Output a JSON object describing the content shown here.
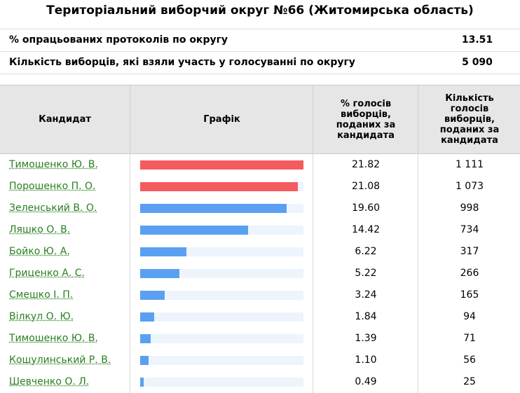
{
  "title": "Територіальний виборчий округ №66 (Житомирська область)",
  "summary": [
    {
      "label": "% опрацьованих протоколів по округу",
      "value": "13.51"
    },
    {
      "label": "Кількість виборців, які взяли участь у голосуванні по округу",
      "value": "5 090"
    }
  ],
  "table": {
    "headers": {
      "candidate": "Кандидат",
      "graph": "Графік",
      "percent": "% голосів виборців, поданих за кандидата",
      "votes": "Кількість голосів виборців, поданих за кандидата"
    }
  },
  "colors": {
    "leader": "#f45b5f",
    "other": "#5aa0f2",
    "track": "#eef4fc",
    "link": "#2a7f1f"
  },
  "chart_data": {
    "type": "bar",
    "categories": [
      "Тимошенко Ю. В.",
      "Порошенко П. О.",
      "Зеленський В. О.",
      "Ляшко О. В.",
      "Бойко Ю. А.",
      "Гриценко А. С.",
      "Смешко І. П.",
      "Вілкул О. Ю.",
      "Тимошенко Ю. В.",
      "Кошулинський Р. В.",
      "Шевченко О. Л."
    ],
    "values": [
      21.82,
      21.08,
      19.6,
      14.42,
      6.22,
      5.22,
      3.24,
      1.84,
      1.39,
      1.1,
      0.49
    ],
    "percent_labels": [
      "21.82",
      "21.08",
      "19.60",
      "14.42",
      "6.22",
      "5.22",
      "3.24",
      "1.84",
      "1.39",
      "1.10",
      "0.49"
    ],
    "votes_labels": [
      "1 111",
      "1 073",
      "998",
      "734",
      "317",
      "266",
      "165",
      "94",
      "71",
      "56",
      "25"
    ],
    "highlighted": [
      true,
      true,
      false,
      false,
      false,
      false,
      false,
      false,
      false,
      false,
      false
    ],
    "xlim": [
      0,
      21.82
    ]
  }
}
